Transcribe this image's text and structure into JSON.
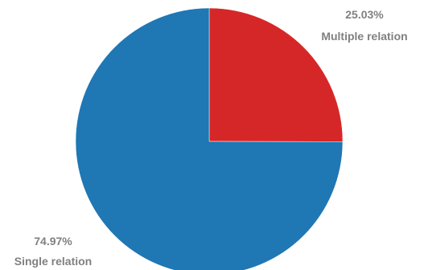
{
  "chart_data": {
    "type": "pie",
    "start_angle_deg": 0,
    "direction": "clockwise",
    "slices": [
      {
        "label": "Multiple relation",
        "value": 25.03,
        "percent_label": "25.03%",
        "color": "#d62728"
      },
      {
        "label": "Single relation",
        "value": 74.97,
        "percent_label": "74.97%",
        "color": "#1f77b4"
      }
    ],
    "legend": "none"
  }
}
